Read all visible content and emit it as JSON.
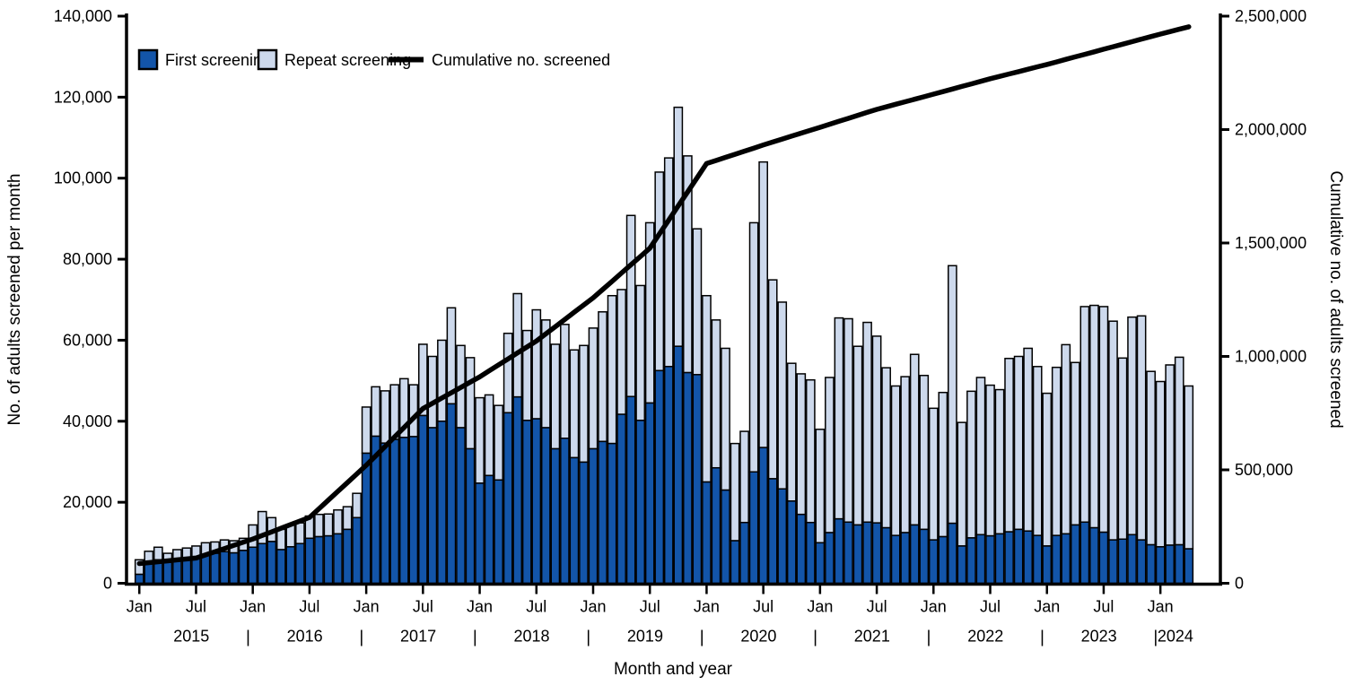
{
  "legend": {
    "first": "First screening",
    "repeat": "Repeat screening",
    "cumulative": "Cumulative no. screened"
  },
  "y_axis_left": {
    "label": "No. of adults screened per month",
    "tick_values": [
      0,
      20000,
      40000,
      60000,
      80000,
      100000,
      120000,
      140000
    ],
    "tick_labels": [
      "0",
      "20,000",
      "40,000",
      "60,000",
      "80,000",
      "100,000",
      "120,000",
      "140,000"
    ],
    "max": 140000
  },
  "y_axis_right": {
    "label": "Cumulative no. of adults screened",
    "tick_values": [
      0,
      500000,
      1000000,
      1500000,
      2000000,
      2500000
    ],
    "tick_labels": [
      "0",
      "500,000",
      "1,000,000",
      "1,500,000",
      "2,000,000",
      "2,500,000"
    ],
    "max": 2500000
  },
  "x_axis": {
    "label": "Month and year",
    "jan_label": "Jan",
    "jul_label": "Jul",
    "year_separator": "|",
    "years": [
      "2015",
      "2016",
      "2017",
      "2018",
      "2019",
      "2020",
      "2021",
      "2022",
      "2023",
      "2024"
    ]
  },
  "colors": {
    "first_screening": "#1355a9",
    "repeat_screening": "#cdd9ec",
    "cumulative_line": "#000000",
    "axis": "#000000"
  },
  "chart_data": {
    "type": "bar",
    "subtype": "stacked-bars-with-cumulative-line",
    "start_month": "Jan 2015",
    "end_month": "Apr 2024",
    "n_months": 112,
    "categories_note": "monthly, Jan 2015 through Apr 2024",
    "series": [
      {
        "name": "First screening",
        "values": [
          2200,
          4800,
          5800,
          5200,
          5500,
          6300,
          6600,
          7000,
          7400,
          7800,
          7500,
          8100,
          8900,
          9800,
          10300,
          8300,
          9000,
          9800,
          11100,
          11500,
          11700,
          12200,
          13300,
          16200,
          32100,
          36300,
          34600,
          35500,
          36000,
          36200,
          41400,
          38400,
          40000,
          44300,
          38400,
          33200,
          24700,
          26600,
          25500,
          42100,
          46000,
          40200,
          40600,
          38400,
          33200,
          35800,
          31000,
          29900,
          33200,
          35000,
          34500,
          41700,
          46100,
          40200,
          44500,
          52500,
          53500,
          58500,
          52000,
          51500,
          25000,
          28500,
          23000,
          10500,
          15000,
          27500,
          33500,
          25800,
          23300,
          20300,
          17000,
          15000,
          10000,
          12500,
          15900,
          15100,
          14400,
          15100,
          14900,
          13700,
          11800,
          12500,
          14400,
          13300,
          10700,
          11500,
          14800,
          9200,
          11200,
          12000,
          11700,
          12200,
          12700,
          13300,
          12900,
          11800,
          9200,
          11800,
          12200,
          14400,
          15100,
          13700,
          12600,
          10700,
          10900,
          12000,
          10700,
          9500,
          9000,
          9400,
          9500,
          8500
        ]
      },
      {
        "name": "Repeat screening",
        "values": [
          3600,
          3100,
          3100,
          2200,
          2800,
          2400,
          2600,
          3000,
          2800,
          2900,
          3000,
          3000,
          5500,
          7900,
          5900,
          5000,
          5400,
          5100,
          5500,
          5500,
          5400,
          5900,
          5600,
          6000,
          11400,
          12200,
          12900,
          13500,
          14500,
          12800,
          17600,
          17600,
          20000,
          23700,
          20300,
          22500,
          21100,
          19900,
          18400,
          19600,
          25500,
          22200,
          26900,
          26600,
          25800,
          28100,
          26600,
          28800,
          29800,
          32000,
          36500,
          30800,
          44700,
          33300,
          44500,
          49000,
          51500,
          59000,
          53500,
          36000,
          46000,
          36500,
          35000,
          24000,
          22500,
          61500,
          70500,
          49100,
          46100,
          34000,
          34700,
          35200,
          28000,
          38300,
          49600,
          50200,
          44100,
          49300,
          46100,
          39500,
          36900,
          38500,
          42100,
          38000,
          32500,
          35600,
          63600,
          30500,
          36200,
          38800,
          37200,
          35600,
          42800,
          42700,
          45100,
          41700,
          37700,
          41500,
          46700,
          40100,
          53200,
          54900,
          55700,
          54000,
          44700,
          53700,
          55300,
          42800,
          40800,
          44500,
          46300,
          40200
        ]
      }
    ],
    "cumulative_line": {
      "name": "Cumulative no. screened",
      "anchors_month_index_value": [
        [
          0,
          87000
        ],
        [
          6,
          111000
        ],
        [
          12,
          195000
        ],
        [
          18,
          290000
        ],
        [
          24,
          520000
        ],
        [
          30,
          770000
        ],
        [
          36,
          910000
        ],
        [
          42,
          1068000
        ],
        [
          48,
          1258000
        ],
        [
          54,
          1477000
        ],
        [
          60,
          1850000
        ],
        [
          66,
          1932000
        ],
        [
          72,
          2010000
        ],
        [
          78,
          2089000
        ],
        [
          84,
          2156000
        ],
        [
          90,
          2224000
        ],
        [
          96,
          2287000
        ],
        [
          102,
          2354000
        ],
        [
          108,
          2421000
        ],
        [
          111,
          2453000
        ]
      ]
    },
    "ylim_left": [
      0,
      140000
    ],
    "ylim_right": [
      0,
      2500000
    ],
    "grid": false,
    "legend_position": "top-left-inside"
  }
}
